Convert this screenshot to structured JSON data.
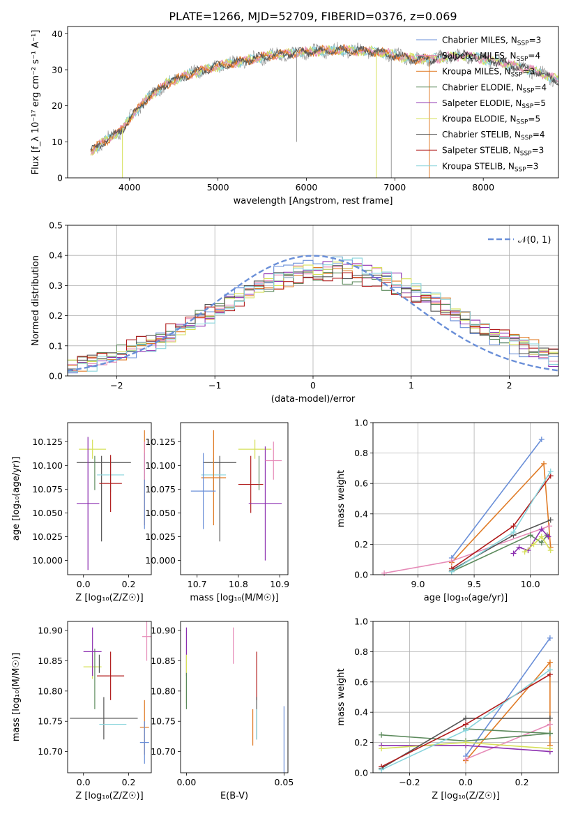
{
  "figure": {
    "title": "PLATE=1266, MJD=52709, FIBERID=0376, z=0.069"
  },
  "colors": {
    "chabrier_miles": "#6a8fd8",
    "salpeter_miles": "#e68bb8",
    "kroupa_miles": "#e07b26",
    "chabrier_elodie": "#5c8a5c",
    "salpeter_elodie": "#8c2fb0",
    "kroupa_elodie": "#d6e05a",
    "chabrier_stelib": "#555555",
    "salpeter_stelib": "#b01c1c",
    "kroupa_stelib": "#88d4dc",
    "data": "#999999",
    "normal": "#6a8fd8"
  },
  "chart_data": [
    {
      "id": "spectrum",
      "type": "line",
      "xlabel": "wavelength [Angstrom, rest frame]",
      "ylabel": "Flux [f_λ 10⁻¹⁷ erg cm⁻² s⁻¹ A⁻¹]",
      "xlim": [
        3300,
        8850
      ],
      "ylim": [
        0,
        42
      ],
      "xticks": [
        4000,
        5000,
        6000,
        7000,
        8000
      ],
      "yticks": [
        0,
        10,
        20,
        30,
        40
      ],
      "grid": false,
      "legend_position": "top-right",
      "legend": [
        {
          "name": "Chabrier MILES",
          "nssp": "3",
          "color_key": "chabrier_miles"
        },
        {
          "name": "Salpeter MILES",
          "nssp": "4",
          "color_key": "salpeter_miles"
        },
        {
          "name": "Kroupa MILES",
          "nssp": "3",
          "color_key": "kroupa_miles"
        },
        {
          "name": "Chabrier ELODIE",
          "nssp": "4",
          "color_key": "chabrier_elodie"
        },
        {
          "name": "Salpeter ELODIE",
          "nssp": "5",
          "color_key": "salpeter_elodie"
        },
        {
          "name": "Kroupa ELODIE",
          "nssp": "5",
          "color_key": "kroupa_elodie"
        },
        {
          "name": "Chabrier STELIB",
          "nssp": "4",
          "color_key": "chabrier_stelib"
        },
        {
          "name": "Salpeter STELIB",
          "nssp": "3",
          "color_key": "salpeter_stelib"
        },
        {
          "name": "Kroupa STELIB",
          "nssp": "3",
          "color_key": "kroupa_stelib"
        }
      ],
      "continuum": [
        [
          3550,
          7
        ],
        [
          3700,
          10
        ],
        [
          3900,
          13
        ],
        [
          4050,
          18
        ],
        [
          4200,
          22
        ],
        [
          4400,
          26
        ],
        [
          4700,
          29
        ],
        [
          5000,
          31
        ],
        [
          5300,
          32.5
        ],
        [
          5600,
          34
        ],
        [
          6000,
          35
        ],
        [
          6400,
          35.5
        ],
        [
          6800,
          35
        ],
        [
          7000,
          34
        ],
        [
          7200,
          33
        ],
        [
          7400,
          33
        ],
        [
          7800,
          34
        ],
        [
          8200,
          32
        ],
        [
          8600,
          29.5
        ],
        [
          8850,
          27
        ]
      ],
      "drops": [
        {
          "x": 3920,
          "y": 0,
          "color_key": "kroupa_elodie"
        },
        {
          "x": 5890,
          "y": 10,
          "color_key": "data"
        },
        {
          "x": 6790,
          "y": 0,
          "color_key": "kroupa_elodie"
        },
        {
          "x": 6960,
          "y": 0,
          "color_key": "data"
        },
        {
          "x": 7390,
          "y": 0,
          "color_key": "kroupa_miles"
        }
      ]
    },
    {
      "id": "residuals",
      "type": "histogram",
      "xlabel": "(data-model)/error",
      "ylabel": "Normed distribution",
      "xlim": [
        -2.5,
        2.5
      ],
      "ylim": [
        0,
        0.5
      ],
      "xticks": [
        -2,
        -1,
        0,
        1,
        2
      ],
      "yticks": [
        0.0,
        0.1,
        0.2,
        0.3,
        0.4,
        0.5
      ],
      "grid": true,
      "legend_label": "𝒩(0, 1)",
      "legend_position": "top-right",
      "bin_width": 0.1
    },
    {
      "id": "age_vs_Z",
      "type": "errorbar",
      "xlabel": "Z [log₁₀(Z/Z☉)]",
      "ylabel": "age  [log₁₀(age/yr)]",
      "xlim": [
        -0.07,
        0.3
      ],
      "ylim": [
        9.985,
        10.145
      ],
      "xticks": [
        0.0,
        0.2
      ],
      "yticks": [
        10.0,
        10.025,
        10.05,
        10.075,
        10.1,
        10.125
      ],
      "points": [
        {
          "x": 0.09,
          "y": 10.103,
          "xe": 0.12,
          "ye": 0.0,
          "color_key": "chabrier_stelib"
        },
        {
          "x": 0.08,
          "y": 10.065,
          "xe": 0.0,
          "ye": 0.045,
          "color_key": "chabrier_stelib"
        },
        {
          "x": 0.04,
          "y": 10.117,
          "xe": 0.06,
          "ye": 0.01,
          "color_key": "kroupa_elodie"
        },
        {
          "x": 0.12,
          "y": 10.09,
          "xe": 0.06,
          "ye": 0.018,
          "color_key": "kroupa_stelib"
        },
        {
          "x": 0.12,
          "y": 10.081,
          "xe": 0.05,
          "ye": 0.03,
          "color_key": "salpeter_stelib"
        },
        {
          "x": 0.02,
          "y": 10.06,
          "xe": 0.05,
          "ye": 0.07,
          "color_key": "salpeter_elodie"
        },
        {
          "x": 0.05,
          "y": 10.092,
          "xe": 0.0,
          "ye": 0.018,
          "color_key": "chabrier_elodie"
        },
        {
          "x": 0.27,
          "y": 10.087,
          "xe": 0.0,
          "ye": 0.05,
          "color_key": "kroupa_miles"
        },
        {
          "x": 0.27,
          "y": 10.073,
          "xe": 0.0,
          "ye": 0.04,
          "color_key": "chabrier_miles"
        },
        {
          "x": 0.27,
          "y": 10.105,
          "xe": 0.0,
          "ye": 0.02,
          "color_key": "salpeter_miles"
        }
      ]
    },
    {
      "id": "age_vs_mass",
      "type": "errorbar",
      "xlabel": "mass [log₁₀(M/M☉)]",
      "ylabel": "",
      "xlim": [
        10.66,
        10.92
      ],
      "ylim": [
        9.985,
        10.145
      ],
      "xticks": [
        10.7,
        10.8,
        10.9
      ],
      "yticks": [
        10.0,
        10.025,
        10.05,
        10.075,
        10.1,
        10.125
      ],
      "points": [
        {
          "x": 10.755,
          "y": 10.103,
          "xe": 0.04,
          "ye": 0.0,
          "color_key": "chabrier_stelib"
        },
        {
          "x": 10.755,
          "y": 10.065,
          "xe": 0.0,
          "ye": 0.045,
          "color_key": "chabrier_stelib"
        },
        {
          "x": 10.84,
          "y": 10.117,
          "xe": 0.04,
          "ye": 0.01,
          "color_key": "kroupa_elodie"
        },
        {
          "x": 10.74,
          "y": 10.09,
          "xe": 0.03,
          "ye": 0.018,
          "color_key": "kroupa_stelib"
        },
        {
          "x": 10.83,
          "y": 10.08,
          "xe": 0.03,
          "ye": 0.03,
          "color_key": "salpeter_stelib"
        },
        {
          "x": 10.865,
          "y": 10.06,
          "xe": 0.04,
          "ye": 0.06,
          "color_key": "salpeter_elodie"
        },
        {
          "x": 10.85,
          "y": 10.092,
          "xe": 0.0,
          "ye": 0.018,
          "color_key": "chabrier_elodie"
        },
        {
          "x": 10.74,
          "y": 10.087,
          "xe": 0.03,
          "ye": 0.05,
          "color_key": "kroupa_miles"
        },
        {
          "x": 10.715,
          "y": 10.073,
          "xe": 0.03,
          "ye": 0.04,
          "color_key": "chabrier_miles"
        },
        {
          "x": 10.885,
          "y": 10.105,
          "xe": 0.02,
          "ye": 0.02,
          "color_key": "salpeter_miles"
        }
      ]
    },
    {
      "id": "weight_vs_age",
      "type": "line",
      "xlabel": "age  [log₁₀(age/yr)]",
      "ylabel": "mass weight",
      "xlim": [
        8.6,
        10.25
      ],
      "ylim": [
        0,
        1
      ],
      "xticks": [
        9.0,
        9.5,
        10.0
      ],
      "yticks": [
        0.0,
        0.2,
        0.4,
        0.6,
        0.8,
        1.0
      ],
      "grid": true,
      "series": [
        {
          "key": "chabrier_miles",
          "points": [
            [
              9.3,
              0.11
            ],
            [
              10.1,
              0.89
            ]
          ]
        },
        {
          "key": "kroupa_miles",
          "points": [
            [
              9.3,
              0.08
            ],
            [
              10.12,
              0.73
            ],
            [
              10.18,
              0.18
            ]
          ]
        },
        {
          "key": "salpeter_miles",
          "points": [
            [
              8.7,
              0.01
            ],
            [
              9.3,
              0.09
            ],
            [
              10.17,
              0.32
            ]
          ]
        },
        {
          "key": "chabrier_elodie",
          "points": [
            [
              9.3,
              0.02
            ],
            [
              10.0,
              0.26
            ],
            [
              10.1,
              0.21
            ],
            [
              10.15,
              0.26
            ]
          ]
        },
        {
          "key": "salpeter_elodie",
          "points": [
            [
              9.85,
              0.14
            ],
            [
              9.9,
              0.18
            ],
            [
              9.98,
              0.16
            ],
            [
              10.1,
              0.3
            ],
            [
              10.16,
              0.25
            ]
          ]
        },
        {
          "key": "kroupa_elodie",
          "points": [
            [
              9.95,
              0.15
            ],
            [
              10.03,
              0.2
            ],
            [
              10.1,
              0.25
            ],
            [
              10.18,
              0.16
            ]
          ]
        },
        {
          "key": "chabrier_stelib",
          "points": [
            [
              9.3,
              0.03
            ],
            [
              9.85,
              0.26
            ],
            [
              10.18,
              0.36
            ]
          ]
        },
        {
          "key": "salpeter_stelib",
          "points": [
            [
              9.3,
              0.04
            ],
            [
              9.85,
              0.32
            ],
            [
              10.18,
              0.65
            ]
          ]
        },
        {
          "key": "kroupa_stelib",
          "points": [
            [
              9.3,
              0.02
            ],
            [
              9.85,
              0.28
            ],
            [
              10.18,
              0.68
            ]
          ]
        }
      ]
    },
    {
      "id": "mass_vs_Z",
      "type": "errorbar",
      "xlabel": "Z [log₁₀(Z/Z☉)]",
      "ylabel": "mass [log₁₀(M/M☉)]",
      "xlim": [
        -0.07,
        0.3
      ],
      "ylim": [
        10.665,
        10.915
      ],
      "xticks": [
        0.0,
        0.2
      ],
      "yticks": [
        10.7,
        10.75,
        10.8,
        10.85,
        10.9
      ],
      "points": [
        {
          "x": 0.09,
          "y": 10.755,
          "xe": 0.15,
          "ye": 0.035,
          "color_key": "chabrier_stelib"
        },
        {
          "x": 0.04,
          "y": 10.84,
          "xe": 0.04,
          "ye": 0.02,
          "color_key": "kroupa_elodie"
        },
        {
          "x": 0.05,
          "y": 10.82,
          "xe": 0.0,
          "ye": 0.05,
          "color_key": "chabrier_elodie"
        },
        {
          "x": 0.13,
          "y": 10.745,
          "xe": 0.06,
          "ye": 0.0,
          "color_key": "kroupa_stelib"
        },
        {
          "x": 0.12,
          "y": 10.825,
          "xe": 0.06,
          "ye": 0.04,
          "color_key": "salpeter_stelib"
        },
        {
          "x": 0.04,
          "y": 10.865,
          "xe": 0.04,
          "ye": 0.04,
          "color_key": "salpeter_elodie"
        },
        {
          "x": 0.07,
          "y": 10.845,
          "xe": 0.0,
          "ye": 0.015,
          "color_key": "chabrier_stelib"
        },
        {
          "x": 0.27,
          "y": 10.74,
          "xe": 0.02,
          "ye": 0.045,
          "color_key": "kroupa_miles"
        },
        {
          "x": 0.27,
          "y": 10.715,
          "xe": 0.02,
          "ye": 0.035,
          "color_key": "chabrier_miles"
        },
        {
          "x": 0.28,
          "y": 10.89,
          "xe": 0.02,
          "ye": 0.04,
          "color_key": "salpeter_miles"
        }
      ]
    },
    {
      "id": "mass_vs_ebv",
      "type": "errorbar",
      "xlabel": "E(B-V)",
      "ylabel": "",
      "xlim": [
        -0.003,
        0.052
      ],
      "ylim": [
        10.665,
        10.915
      ],
      "xticks": [
        0.0,
        0.05
      ],
      "yticks": [
        10.7,
        10.75,
        10.8,
        10.85,
        10.9
      ],
      "points": [
        {
          "x": 0.0,
          "y": 10.865,
          "xe": 0,
          "ye": 0.04,
          "color_key": "salpeter_elodie"
        },
        {
          "x": 0.0,
          "y": 10.82,
          "xe": 0,
          "ye": 0.04,
          "color_key": "kroupa_elodie"
        },
        {
          "x": 0.0,
          "y": 10.8,
          "xe": 0,
          "ye": 0.03,
          "color_key": "chabrier_elodie"
        },
        {
          "x": 0.024,
          "y": 10.875,
          "xe": 0,
          "ye": 0.03,
          "color_key": "salpeter_miles"
        },
        {
          "x": 0.036,
          "y": 10.825,
          "xe": 0,
          "ye": 0.04,
          "color_key": "salpeter_stelib"
        },
        {
          "x": 0.034,
          "y": 10.74,
          "xe": 0,
          "ye": 0.03,
          "color_key": "kroupa_miles"
        },
        {
          "x": 0.036,
          "y": 10.755,
          "xe": 0,
          "ye": 0.035,
          "color_key": "chabrier_stelib"
        },
        {
          "x": 0.036,
          "y": 10.745,
          "xe": 0,
          "ye": 0.025,
          "color_key": "kroupa_stelib"
        },
        {
          "x": 0.05,
          "y": 10.72,
          "xe": 0,
          "ye": 0.055,
          "color_key": "chabrier_miles"
        }
      ]
    },
    {
      "id": "weight_vs_Z",
      "type": "line",
      "xlabel": "Z [log₁₀(Z/Z☉)]",
      "ylabel": "mass weight",
      "xlim": [
        -0.33,
        0.33
      ],
      "ylim": [
        0,
        1
      ],
      "xticks": [
        -0.2,
        0.0,
        0.2
      ],
      "yticks": [
        0.0,
        0.2,
        0.4,
        0.6,
        0.8,
        1.0
      ],
      "grid": true,
      "series": [
        {
          "key": "chabrier_miles",
          "points": [
            [
              0.0,
              0.11
            ],
            [
              0.3,
              0.89
            ]
          ]
        },
        {
          "key": "kroupa_miles",
          "points": [
            [
              0.0,
              0.08
            ],
            [
              0.3,
              0.73
            ],
            [
              0.3,
              0.18
            ]
          ]
        },
        {
          "key": "salpeter_miles",
          "points": [
            [
              0.0,
              0.09
            ],
            [
              0.3,
              0.32
            ]
          ]
        },
        {
          "key": "chabrier_elodie",
          "points": [
            [
              -0.3,
              0.25
            ],
            [
              0.0,
              0.21
            ],
            [
              0.3,
              0.26
            ],
            [
              0.0,
              0.29
            ],
            [
              0.3,
              0.26
            ]
          ]
        },
        {
          "key": "salpeter_elodie",
          "points": [
            [
              -0.3,
              0.18
            ],
            [
              0.0,
              0.18
            ],
            [
              0.3,
              0.14
            ]
          ]
        },
        {
          "key": "kroupa_elodie",
          "points": [
            [
              -0.3,
              0.16
            ],
            [
              0.0,
              0.2
            ],
            [
              0.3,
              0.16
            ]
          ]
        },
        {
          "key": "chabrier_stelib",
          "points": [
            [
              -0.3,
              0.03
            ],
            [
              0.0,
              0.36
            ],
            [
              0.3,
              0.36
            ]
          ]
        },
        {
          "key": "salpeter_stelib",
          "points": [
            [
              -0.3,
              0.04
            ],
            [
              0.0,
              0.32
            ],
            [
              0.3,
              0.65
            ]
          ]
        },
        {
          "key": "kroupa_stelib",
          "points": [
            [
              -0.3,
              0.02
            ],
            [
              0.0,
              0.28
            ],
            [
              0.3,
              0.68
            ]
          ]
        }
      ]
    }
  ]
}
